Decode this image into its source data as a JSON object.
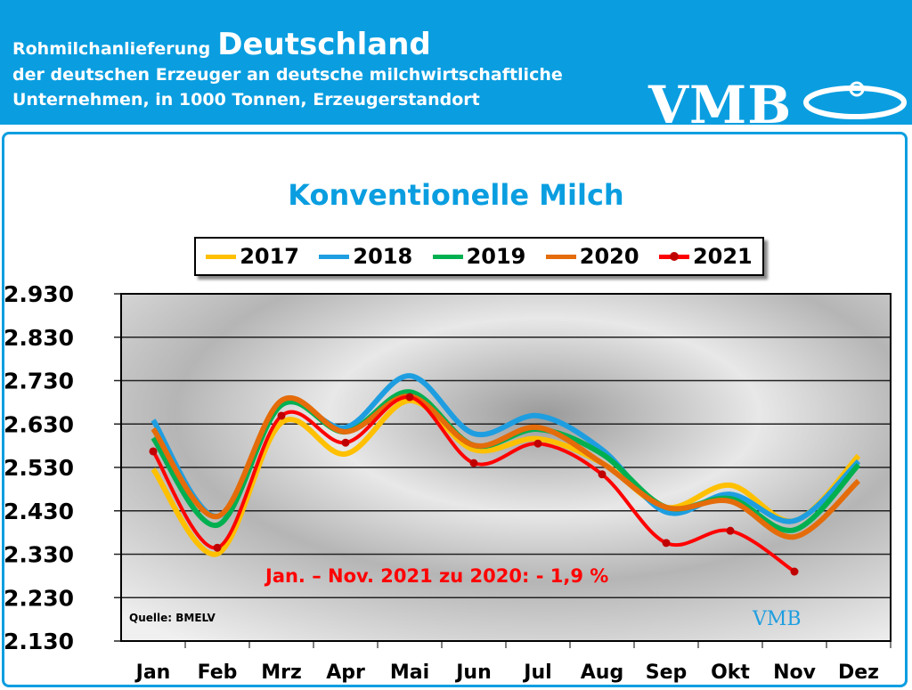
{
  "header": {
    "line1_small": "Rohmilchanlieferung",
    "line1_big": "Deutschland",
    "line2": "der deutschen Erzeuger an deutsche milchwirtschaftliche",
    "line3": "Unternehmen, in 1000 Tonnen, Erzeugerstandort",
    "logo": "VMB"
  },
  "chart_data": {
    "type": "line",
    "title": "Konventionelle Milch",
    "categories": [
      "Jan",
      "Feb",
      "Mrz",
      "Apr",
      "Mai",
      "Jun",
      "Jul",
      "Aug",
      "Sep",
      "Okt",
      "Nov",
      "Dez"
    ],
    "ylim": [
      2130,
      2930
    ],
    "yticks": [
      "2.130",
      "2.230",
      "2.330",
      "2.430",
      "2.530",
      "2.630",
      "2.730",
      "2.830",
      "2.930"
    ],
    "grid": true,
    "legend": "top",
    "series": [
      {
        "name": "2017",
        "color": "#ffc000",
        "values": [
          2526,
          2331,
          2633,
          2561,
          2684,
          2571,
          2596,
          2540,
          2438,
          2489,
          2407,
          2557
        ]
      },
      {
        "name": "2018",
        "color": "#1e9ee0",
        "values": [
          2639,
          2417,
          2674,
          2622,
          2741,
          2608,
          2649,
          2571,
          2427,
          2468,
          2407,
          2544
        ]
      },
      {
        "name": "2019",
        "color": "#00b050",
        "values": [
          2598,
          2397,
          2674,
          2612,
          2704,
          2581,
          2618,
          2561,
          2438,
          2458,
          2386,
          2536
        ]
      },
      {
        "name": "2020",
        "color": "#e46c0a",
        "values": [
          2619,
          2417,
          2684,
          2612,
          2694,
          2581,
          2622,
          2540,
          2438,
          2452,
          2370,
          2499
        ]
      },
      {
        "name": "2021",
        "color": "#ff0000",
        "markers": true,
        "values": [
          2567,
          2345,
          2649,
          2587,
          2692,
          2540,
          2585,
          2514,
          2356,
          2384,
          2290,
          null
        ]
      }
    ],
    "annotation": "Jan. – Nov. 2021 zu 2020: - 1,9 %",
    "source": "Quelle: BMELV",
    "watermark": "VMB"
  }
}
